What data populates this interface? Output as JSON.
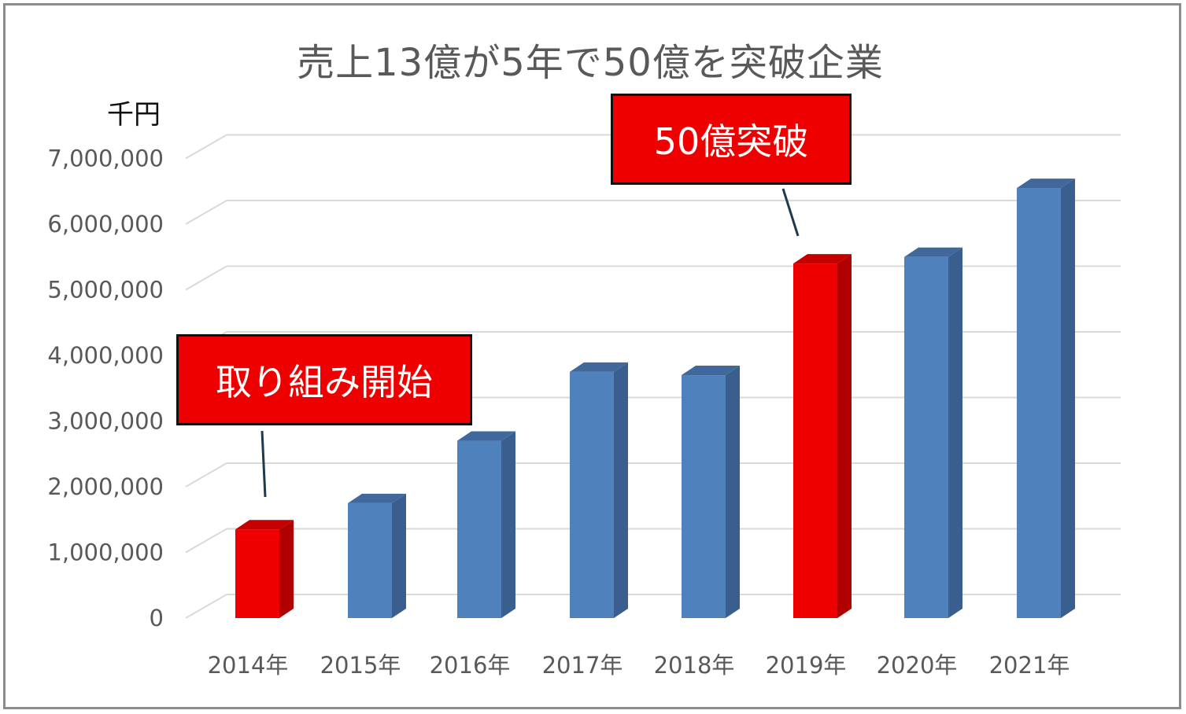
{
  "chart_data": {
    "type": "bar",
    "title": "売上13億が5年で50億を突破企業",
    "unit": "千円",
    "categories": [
      "2014年",
      "2015年",
      "2016年",
      "2017年",
      "2018年",
      "2019年",
      "2020年",
      "2021年"
    ],
    "values": [
      1350000,
      1750000,
      2700000,
      3750000,
      3700000,
      5400000,
      5500000,
      6550000
    ],
    "highlighted": [
      "2014年",
      "2019年"
    ],
    "yticks": [
      "0",
      "1,000,000",
      "2,000,000",
      "3,000,000",
      "4,000,000",
      "5,000,000",
      "6,000,000",
      "7,000,000"
    ],
    "ylim": [
      0,
      7000000
    ],
    "grid": true,
    "colors": {
      "bar": "#4f81bd",
      "highlight": "#ee0000"
    },
    "annotations": [
      {
        "text": "取り組み開始",
        "target": "2014年"
      },
      {
        "text": "50億突破",
        "target": "2019年"
      }
    ]
  }
}
